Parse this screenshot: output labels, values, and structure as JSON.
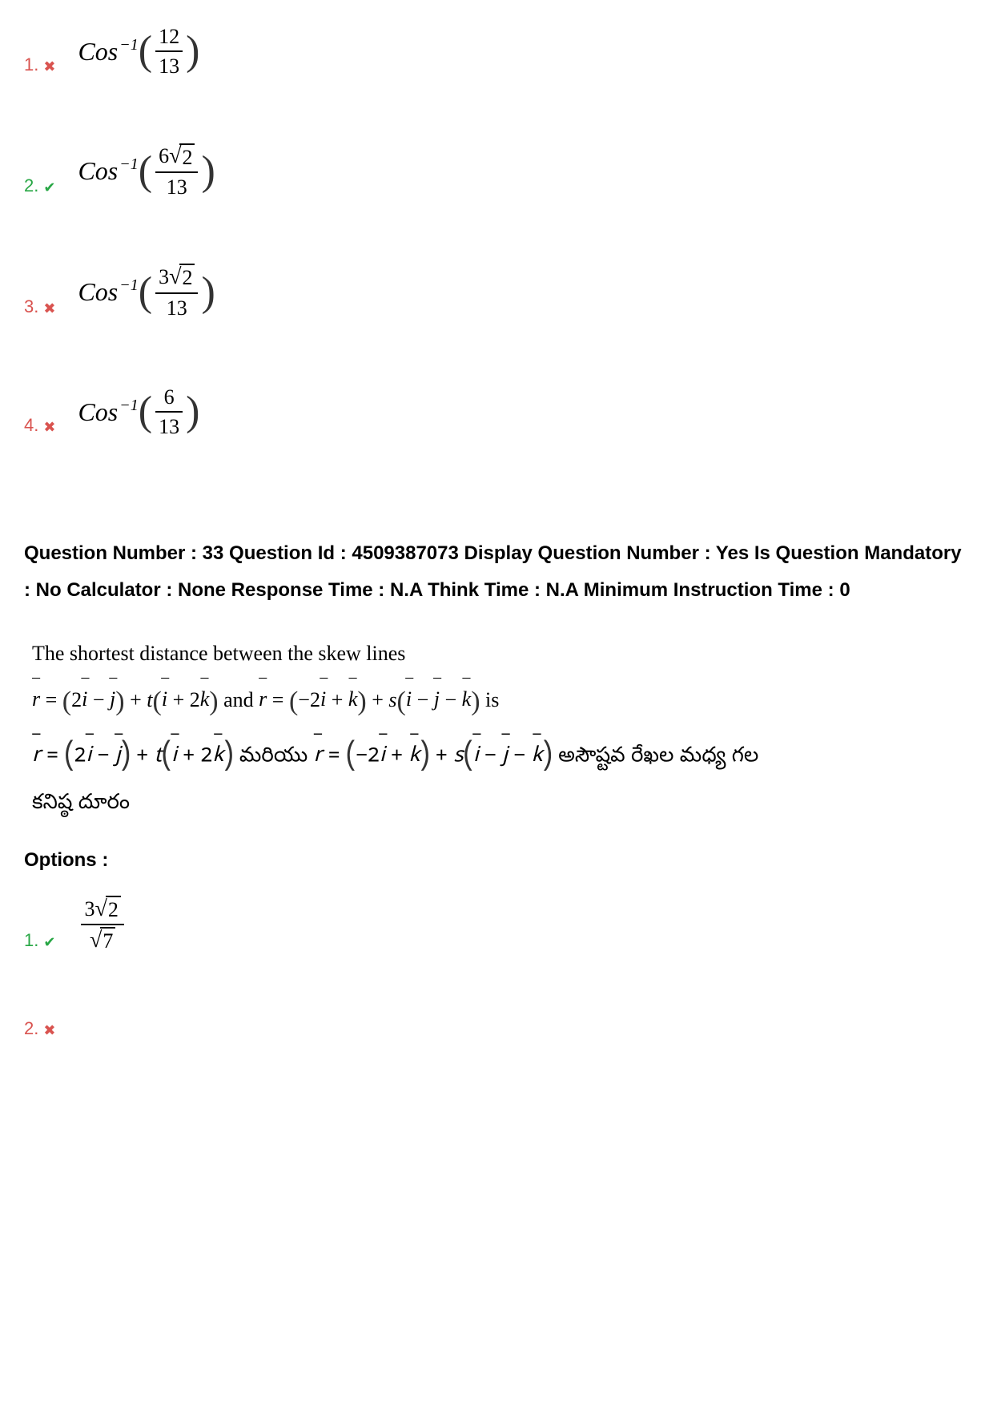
{
  "prev_options": [
    {
      "num": "1.",
      "status": "wrong",
      "mark": "✖",
      "cos": "Cos",
      "exp": "−1",
      "frac_num": "12",
      "frac_den": "13",
      "has_sqrt": false
    },
    {
      "num": "2.",
      "status": "correct",
      "mark": "✔",
      "cos": "Cos",
      "exp": "−1",
      "frac_num": "6√2",
      "frac_num_coef": "6",
      "frac_num_rad": "2",
      "frac_den": "13",
      "has_sqrt": true
    },
    {
      "num": "3.",
      "status": "wrong",
      "mark": "✖",
      "cos": "Cos",
      "exp": "−1",
      "frac_num_coef": "3",
      "frac_num_rad": "2",
      "frac_den": "13",
      "has_sqrt": true
    },
    {
      "num": "4.",
      "status": "wrong",
      "mark": "✖",
      "cos": "Cos",
      "exp": "−1",
      "frac_num": "6",
      "frac_den": "13",
      "has_sqrt": false
    }
  ],
  "meta": {
    "line": "Question Number : 33 Question Id : 4509387073 Display Question Number : Yes Is Question Mandatory : No Calculator : None Response Time : N.A Think Time : N.A Minimum Instruction Time : 0"
  },
  "question": {
    "en_line1": "The shortest distance between the skew lines",
    "en_line2_suffix": " is",
    "te_suffix": " అసౌష్టవ రేఖల మధ్య గల",
    "te_line2": "కనిష్ఠ దూరం",
    "and_word": " and ",
    "te_and": " మరియు "
  },
  "options_label": "Options :",
  "opt1": {
    "num": "1.",
    "status": "correct",
    "mark": "✔",
    "num_coef": "3",
    "num_rad": "2",
    "den_rad": "7"
  },
  "opt2": {
    "num": "2.",
    "status": "wrong",
    "mark": "✖"
  },
  "colors": {
    "wrong": "#d9534f",
    "correct": "#28a745",
    "text": "#000000",
    "bg": "#ffffff"
  }
}
